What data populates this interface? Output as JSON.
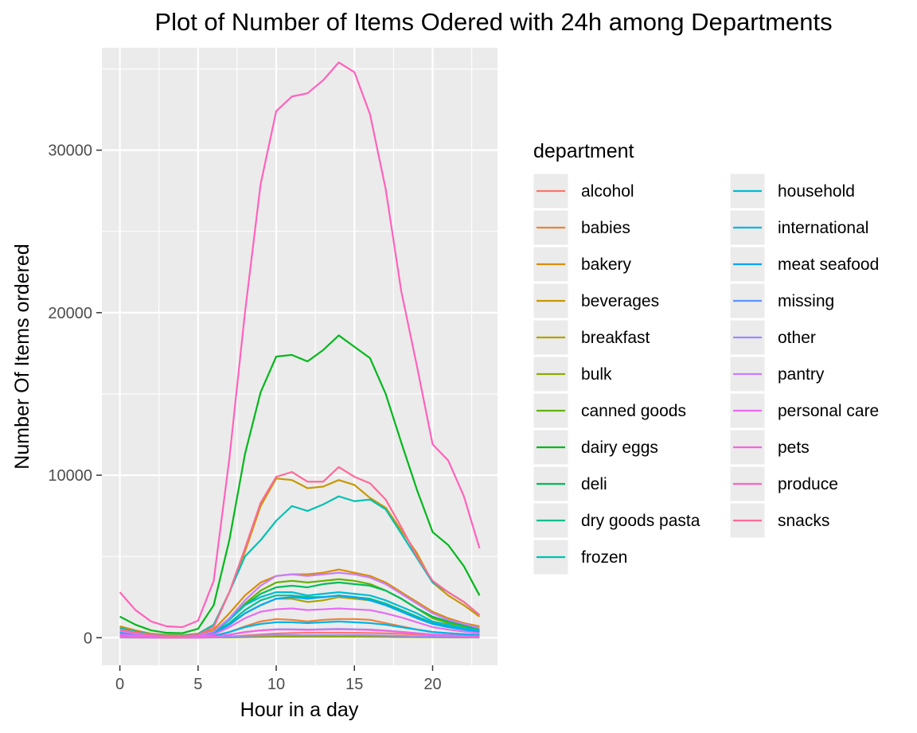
{
  "chart_data": {
    "type": "line",
    "title": "Plot of Number of Items Odered with 24h among Departments",
    "xlabel": "Hour in a day",
    "ylabel": "Number Of Items ordered",
    "xlim": [
      -1.15,
      24.15
    ],
    "ylim": [
      -1700,
      36300
    ],
    "x_ticks": [
      0,
      5,
      10,
      15,
      20
    ],
    "y_ticks": [
      0,
      10000,
      20000,
      30000
    ],
    "grid": true,
    "legend": {
      "title": "department",
      "placement": "right",
      "columns": 2
    },
    "x": [
      0,
      1,
      2,
      3,
      4,
      5,
      6,
      7,
      8,
      9,
      10,
      11,
      12,
      13,
      14,
      15,
      16,
      17,
      18,
      19,
      20,
      21,
      22,
      23
    ],
    "series": [
      {
        "name": "alcohol",
        "color": "#F8766D",
        "values": [
          30,
          20,
          15,
          12,
          12,
          15,
          30,
          70,
          140,
          200,
          260,
          290,
          300,
          310,
          310,
          300,
          290,
          270,
          240,
          200,
          160,
          120,
          80,
          50
        ]
      },
      {
        "name": "babies",
        "color": "#EC8239",
        "values": [
          160,
          100,
          60,
          40,
          40,
          50,
          120,
          350,
          700,
          1000,
          1150,
          1100,
          1000,
          1100,
          1150,
          1150,
          1100,
          900,
          700,
          500,
          350,
          280,
          220,
          180
        ]
      },
      {
        "name": "bakery",
        "color": "#DB8E00",
        "values": [
          650,
          380,
          220,
          160,
          140,
          180,
          500,
          1500,
          2600,
          3400,
          3800,
          3900,
          3900,
          4000,
          4200,
          4000,
          3800,
          3400,
          2800,
          2200,
          1600,
          1200,
          900,
          700
        ]
      },
      {
        "name": "beverages",
        "color": "#C79800",
        "values": [
          700,
          450,
          250,
          180,
          160,
          250,
          800,
          2800,
          5300,
          8100,
          9800,
          9700,
          9200,
          9300,
          9700,
          9400,
          8600,
          8000,
          6600,
          5200,
          3400,
          2600,
          2000,
          1300
        ]
      },
      {
        "name": "breakfast",
        "color": "#AEA200",
        "values": [
          300,
          200,
          120,
          90,
          90,
          110,
          280,
          800,
          1500,
          2000,
          2400,
          2400,
          2200,
          2300,
          2500,
          2400,
          2300,
          2100,
          1700,
          1300,
          900,
          700,
          550,
          400
        ]
      },
      {
        "name": "bulk",
        "color": "#8FAA00",
        "values": [
          10,
          6,
          4,
          3,
          3,
          4,
          10,
          20,
          40,
          50,
          60,
          60,
          60,
          60,
          60,
          60,
          55,
          50,
          40,
          30,
          25,
          20,
          15,
          12
        ]
      },
      {
        "name": "canned goods",
        "color": "#64B200",
        "values": [
          400,
          250,
          150,
          100,
          90,
          120,
          330,
          1100,
          2100,
          2900,
          3400,
          3500,
          3400,
          3500,
          3600,
          3500,
          3300,
          2900,
          2400,
          1800,
          1200,
          900,
          700,
          500
        ]
      },
      {
        "name": "dairy eggs",
        "color": "#00B81B",
        "values": [
          1300,
          800,
          450,
          300,
          280,
          550,
          2000,
          6000,
          11300,
          15100,
          17300,
          17400,
          17000,
          17700,
          18600,
          17900,
          17200,
          15000,
          12000,
          9100,
          6500,
          5700,
          4400,
          2600
        ]
      },
      {
        "name": "deli",
        "color": "#00BD5C",
        "values": [
          350,
          200,
          130,
          90,
          90,
          110,
          330,
          1100,
          2000,
          2700,
          3100,
          3200,
          3100,
          3300,
          3400,
          3300,
          3200,
          2900,
          2400,
          1800,
          1300,
          1000,
          750,
          500
        ]
      },
      {
        "name": "dry goods pasta",
        "color": "#00C08E",
        "values": [
          300,
          180,
          110,
          80,
          80,
          100,
          300,
          900,
          1700,
          2300,
          2600,
          2600,
          2500,
          2500,
          2600,
          2500,
          2400,
          2100,
          1700,
          1300,
          900,
          700,
          550,
          400
        ]
      },
      {
        "name": "frozen",
        "color": "#00C1B2",
        "values": [
          600,
          380,
          210,
          140,
          130,
          220,
          800,
          2800,
          5000,
          6000,
          7200,
          8100,
          7800,
          8200,
          8700,
          8400,
          8500,
          7900,
          6400,
          4900,
          3400,
          2800,
          2200,
          1400
        ]
      },
      {
        "name": "household",
        "color": "#00BCD1",
        "values": [
          350,
          220,
          130,
          90,
          80,
          120,
          360,
          1100,
          2000,
          2500,
          2800,
          2800,
          2600,
          2700,
          2800,
          2700,
          2600,
          2300,
          1900,
          1500,
          1000,
          800,
          600,
          450
        ]
      },
      {
        "name": "international",
        "color": "#00B3EA",
        "values": [
          120,
          80,
          50,
          35,
          30,
          40,
          110,
          350,
          650,
          850,
          950,
          950,
          900,
          950,
          1000,
          950,
          900,
          800,
          650,
          500,
          350,
          280,
          220,
          160
        ]
      },
      {
        "name": "meat seafood",
        "color": "#00A6FF",
        "values": [
          250,
          160,
          90,
          60,
          60,
          80,
          240,
          800,
          1500,
          2000,
          2400,
          2500,
          2400,
          2500,
          2600,
          2500,
          2300,
          2000,
          1600,
          1200,
          850,
          650,
          500,
          350
        ]
      },
      {
        "name": "missing",
        "color": "#5A96FF",
        "values": [
          60,
          40,
          25,
          18,
          16,
          22,
          60,
          180,
          340,
          450,
          520,
          520,
          500,
          520,
          540,
          520,
          500,
          440,
          360,
          280,
          200,
          160,
          120,
          90
        ]
      },
      {
        "name": "other",
        "color": "#9B8AFF",
        "values": [
          20,
          12,
          8,
          6,
          5,
          7,
          20,
          60,
          110,
          140,
          160,
          160,
          150,
          160,
          170,
          160,
          150,
          130,
          110,
          85,
          60,
          45,
          35,
          25
        ]
      },
      {
        "name": "pantry",
        "color": "#C87DFF",
        "values": [
          400,
          250,
          150,
          100,
          100,
          120,
          380,
          1200,
          2300,
          3200,
          3800,
          3900,
          3800,
          3900,
          4000,
          3900,
          3700,
          3300,
          2700,
          2100,
          1500,
          1100,
          850,
          600
        ]
      },
      {
        "name": "personal care",
        "color": "#E76BF3",
        "values": [
          200,
          130,
          80,
          55,
          50,
          65,
          200,
          650,
          1200,
          1600,
          1750,
          1800,
          1700,
          1750,
          1800,
          1750,
          1700,
          1500,
          1250,
          950,
          650,
          500,
          380,
          280
        ]
      },
      {
        "name": "pets",
        "color": "#F863DF",
        "values": [
          60,
          40,
          25,
          18,
          16,
          20,
          60,
          190,
          350,
          450,
          500,
          500,
          480,
          500,
          520,
          500,
          480,
          420,
          350,
          270,
          190,
          150,
          110,
          80
        ]
      },
      {
        "name": "produce",
        "color": "#FF62BC",
        "values": [
          2800,
          1700,
          1000,
          700,
          650,
          1050,
          3500,
          11000,
          20000,
          27900,
          32400,
          33300,
          33500,
          34300,
          35400,
          34800,
          32200,
          27600,
          21300,
          16700,
          11900,
          10900,
          8700,
          5500
        ]
      },
      {
        "name": "snacks",
        "color": "#FF6A98",
        "values": [
          500,
          320,
          180,
          120,
          110,
          180,
          650,
          2800,
          5500,
          8300,
          9900,
          10200,
          9600,
          9600,
          10500,
          9900,
          9500,
          8500,
          6800,
          5000,
          3500,
          2800,
          2200,
          1400
        ]
      }
    ]
  }
}
